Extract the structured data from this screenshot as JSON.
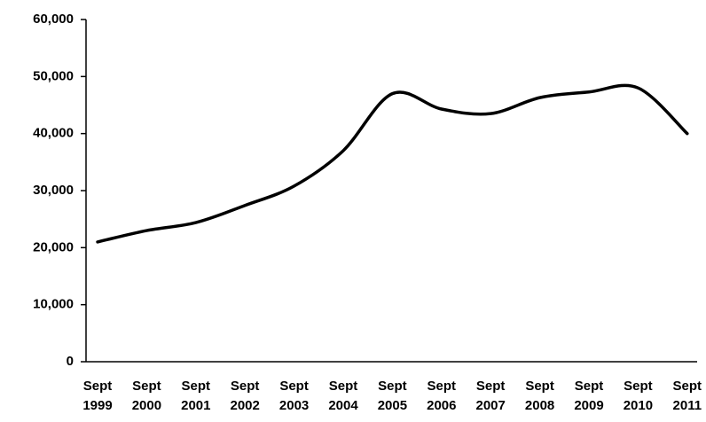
{
  "chart_data": {
    "type": "line",
    "categories": [
      "Sept 1999",
      "Sept 2000",
      "Sept 2001",
      "Sept 2002",
      "Sept 2003",
      "Sept 2004",
      "Sept 2005",
      "Sept 2006",
      "Sept 2007",
      "Sept 2008",
      "Sept 2009",
      "Sept 2010",
      "Sept 2011"
    ],
    "series": [
      {
        "color": "#000000",
        "values": [
          21000,
          23000,
          24400,
          27400,
          30800,
          37000,
          47000,
          44300,
          43500,
          46300,
          47300,
          48000,
          40000
        ]
      }
    ],
    "ylim": [
      0,
      60000
    ],
    "yticks": [
      0,
      {
        "value": 10000,
        "label": "10,000"
      },
      {
        "value": 20000,
        "label": "20,000"
      },
      {
        "value": 30000,
        "label": "30,000"
      },
      {
        "value": 40000,
        "label": "40,000"
      },
      {
        "value": 50000,
        "label": "50,000"
      },
      {
        "value": 60000,
        "label": "60,000"
      }
    ]
  }
}
